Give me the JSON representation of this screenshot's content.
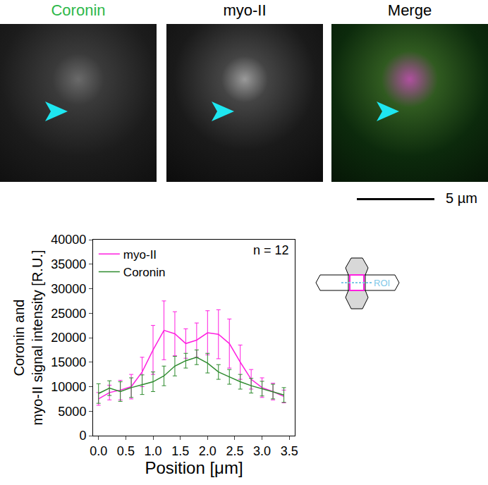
{
  "panels": [
    {
      "title": "Coronin",
      "color": "#2db84a"
    },
    {
      "title": "myo-II",
      "color": "#000000"
    },
    {
      "title": "Merge",
      "color": "#000000"
    }
  ],
  "scale_bar": {
    "label": "5 µm"
  },
  "diagram": {
    "label": "ROI"
  },
  "chart_data": {
    "type": "line",
    "x": [
      0.0,
      0.2,
      0.4,
      0.6,
      0.8,
      1.0,
      1.2,
      1.4,
      1.6,
      1.8,
      2.0,
      2.2,
      2.4,
      2.6,
      2.8,
      3.0,
      3.2,
      3.4
    ],
    "series": [
      {
        "name": "myo-II",
        "color": "#ff1fe0",
        "values": [
          7500,
          8800,
          9300,
          10000,
          13000,
          17500,
          21500,
          20800,
          18800,
          19500,
          21000,
          20700,
          18800,
          15000,
          11500,
          9800,
          9000,
          8000
        ],
        "error": [
          1300,
          1500,
          2000,
          2500,
          3000,
          5000,
          6000,
          4500,
          3000,
          3500,
          4500,
          5000,
          5000,
          3500,
          2000,
          2000,
          1700,
          1300
        ]
      },
      {
        "name": "Coronin",
        "color": "#2e8b2e",
        "values": [
          8600,
          9700,
          9000,
          9800,
          10400,
          11000,
          12200,
          14200,
          15300,
          16000,
          14800,
          13000,
          12000,
          11000,
          10200,
          9600,
          9000,
          8300
        ],
        "error": [
          2000,
          1500,
          2000,
          2000,
          2000,
          2000,
          2000,
          2000,
          1500,
          1500,
          2000,
          1500,
          1500,
          1500,
          1500,
          1500,
          1500,
          1500
        ]
      }
    ],
    "x_label": "Position [μm]",
    "y_label": "Coronin and myo-II signal intensity [R.U.]",
    "annotation": "n = 12",
    "xlim": [
      -0.1,
      3.6
    ],
    "xticks": [
      {
        "value": 0,
        "label": "0.0"
      },
      0.5,
      {
        "value": 1,
        "label": "1.0"
      },
      1.5,
      {
        "value": 2,
        "label": "2.0"
      },
      2.5,
      {
        "value": 3,
        "label": "3.0"
      },
      3.5
    ],
    "ylim": [
      0,
      40000
    ],
    "yticks": [
      0,
      5000,
      10000,
      15000,
      20000,
      25000,
      30000,
      35000,
      40000
    ],
    "grid": false,
    "legend": "upper left"
  }
}
